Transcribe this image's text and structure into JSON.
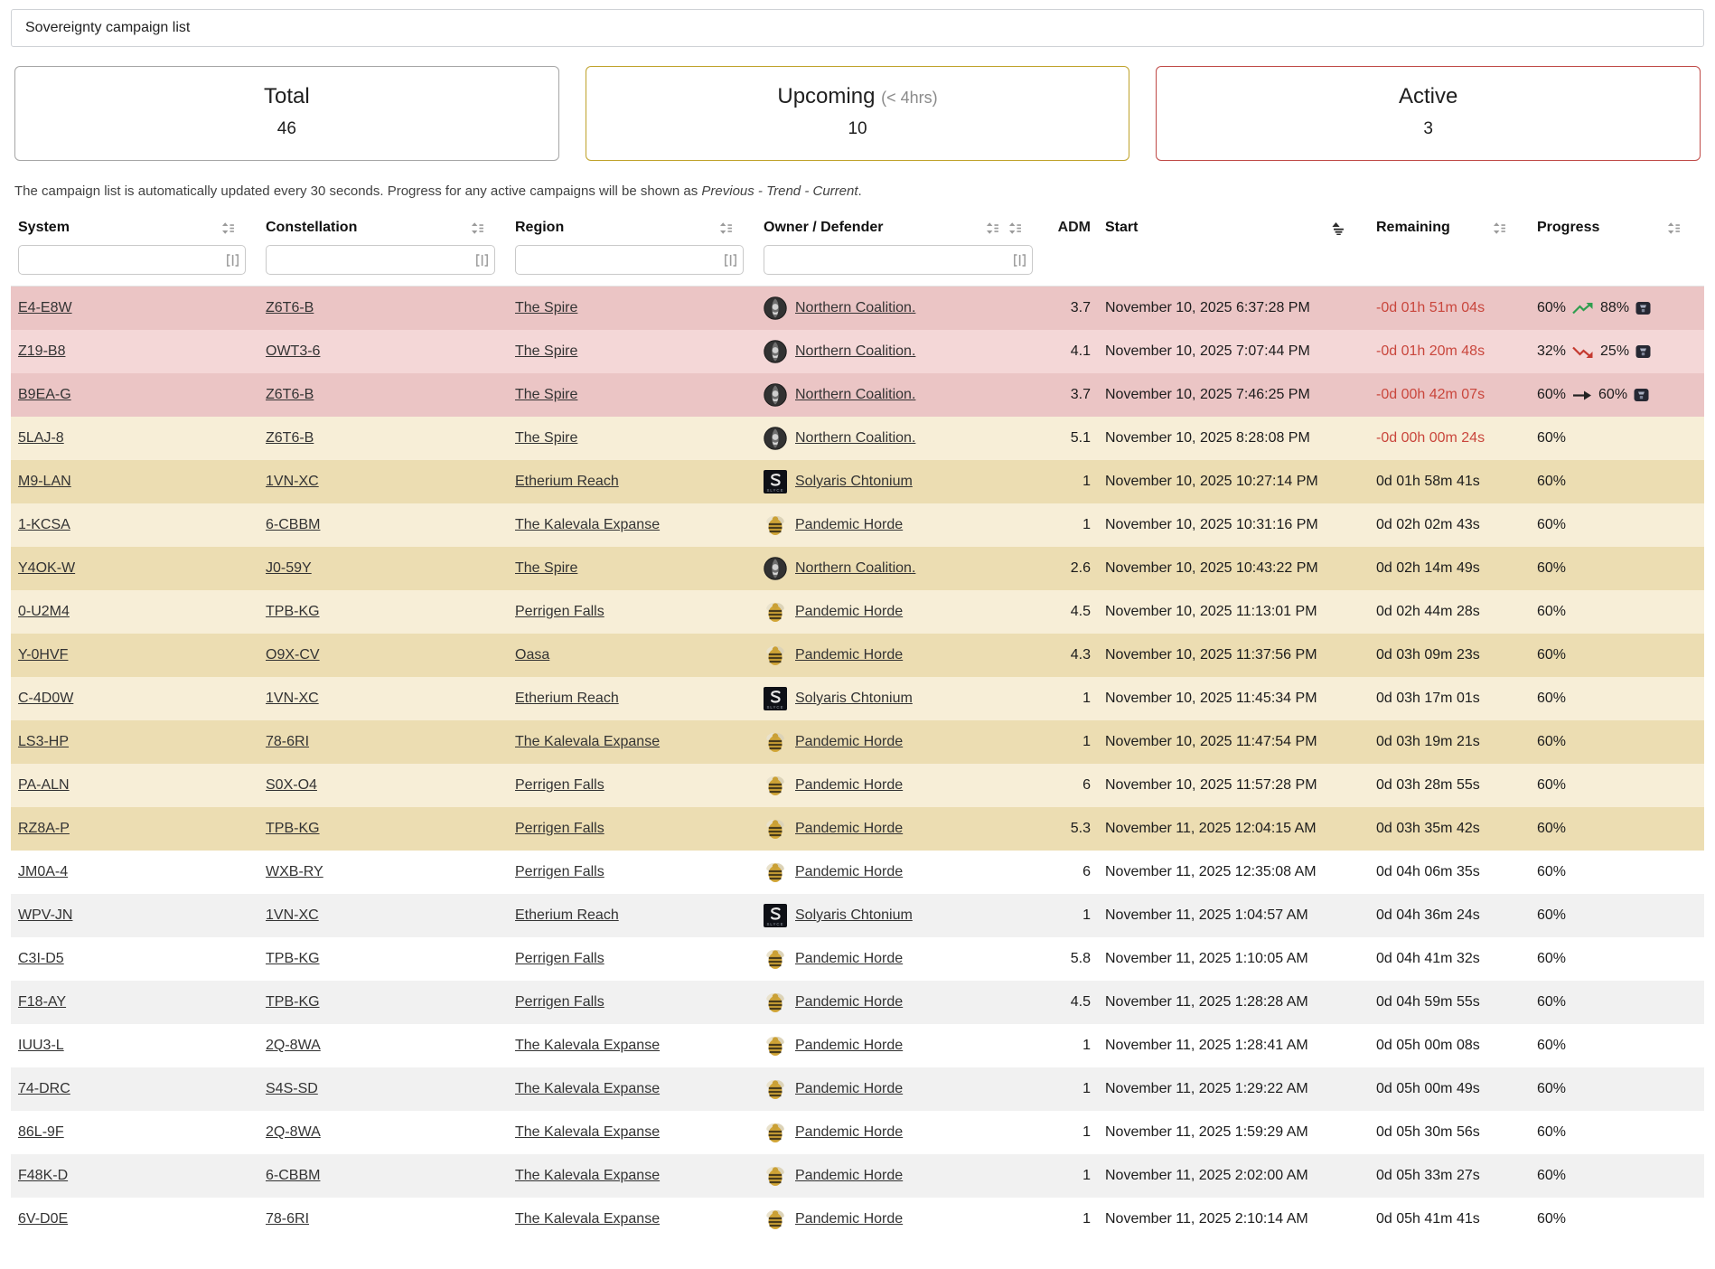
{
  "title": "Sovereignty campaign list",
  "cards": [
    {
      "label": "Total",
      "sub": "",
      "value": "46",
      "border_color": "#a6a6a6"
    },
    {
      "label": "Upcoming",
      "sub": "(< 4hrs)",
      "value": "10",
      "border_color": "#bfa22a"
    },
    {
      "label": "Active",
      "sub": "",
      "value": "3",
      "border_color": "#bf4a47"
    }
  ],
  "info": {
    "text_before": "The campaign list is automatically updated every 30 seconds. Progress for any active campaigns will be shown as ",
    "text_italic": "Previous - Trend - Current",
    "text_after": "."
  },
  "colors": {
    "active_row": "#ebc5c5",
    "upcoming_row": "#ecddb2",
    "overdue_text": "#c9463c",
    "trend_up": "#2f9e4f",
    "trend_down": "#c4392f"
  },
  "table": {
    "columns": [
      "System",
      "Constellation",
      "Region",
      "Owner / Defender",
      "ADM",
      "Start",
      "Remaining",
      "Progress"
    ],
    "sorted_by": {
      "column": "Start",
      "direction": "asc"
    },
    "filters": {
      "system": "",
      "constellation": "",
      "region": "",
      "owner": ""
    },
    "rows": [
      {
        "system": "E4-E8W",
        "constellation": "Z6T6-B",
        "region": "The Spire",
        "owner": "Northern Coalition.",
        "owner_logo": "northern-coalition",
        "adm": "3.7",
        "start": "November 10, 2025 6:37:28 PM",
        "remaining": "-0d 01h 51m 04s",
        "remaining_overdue": true,
        "state": "active",
        "progress": {
          "previous": "60%",
          "trend": "up",
          "current": "88%"
        }
      },
      {
        "system": "Z19-B8",
        "constellation": "OWT3-6",
        "region": "The Spire",
        "owner": "Northern Coalition.",
        "owner_logo": "northern-coalition",
        "adm": "4.1",
        "start": "November 10, 2025 7:07:44 PM",
        "remaining": "-0d 01h 20m 48s",
        "remaining_overdue": true,
        "state": "active",
        "progress": {
          "previous": "32%",
          "trend": "down",
          "current": "25%"
        }
      },
      {
        "system": "B9EA-G",
        "constellation": "Z6T6-B",
        "region": "The Spire",
        "owner": "Northern Coalition.",
        "owner_logo": "northern-coalition",
        "adm": "3.7",
        "start": "November 10, 2025 7:46:25 PM",
        "remaining": "-0d 00h 42m 07s",
        "remaining_overdue": true,
        "state": "active",
        "progress": {
          "previous": "60%",
          "trend": "flat",
          "current": "60%"
        }
      },
      {
        "system": "5LAJ-8",
        "constellation": "Z6T6-B",
        "region": "The Spire",
        "owner": "Northern Coalition.",
        "owner_logo": "northern-coalition",
        "adm": "5.1",
        "start": "November 10, 2025 8:28:08 PM",
        "remaining": "-0d 00h 00m 24s",
        "remaining_overdue": true,
        "state": "upcoming",
        "progress": {
          "current": "60%"
        }
      },
      {
        "system": "M9-LAN",
        "constellation": "1VN-XC",
        "region": "Etherium Reach",
        "owner": "Solyaris Chtonium",
        "owner_logo": "solyaris-chtonium",
        "adm": "1",
        "start": "November 10, 2025 10:27:14 PM",
        "remaining": "0d 01h 58m 41s",
        "remaining_overdue": false,
        "state": "upcoming",
        "progress": {
          "current": "60%"
        }
      },
      {
        "system": "1-KCSA",
        "constellation": "6-CBBM",
        "region": "The Kalevala Expanse",
        "owner": "Pandemic Horde",
        "owner_logo": "pandemic-horde",
        "adm": "1",
        "start": "November 10, 2025 10:31:16 PM",
        "remaining": "0d 02h 02m 43s",
        "remaining_overdue": false,
        "state": "upcoming",
        "progress": {
          "current": "60%"
        }
      },
      {
        "system": "Y4OK-W",
        "constellation": "J0-59Y",
        "region": "The Spire",
        "owner": "Northern Coalition.",
        "owner_logo": "northern-coalition",
        "adm": "2.6",
        "start": "November 10, 2025 10:43:22 PM",
        "remaining": "0d 02h 14m 49s",
        "remaining_overdue": false,
        "state": "upcoming",
        "progress": {
          "current": "60%"
        }
      },
      {
        "system": "0-U2M4",
        "constellation": "TPB-KG",
        "region": "Perrigen Falls",
        "owner": "Pandemic Horde",
        "owner_logo": "pandemic-horde",
        "adm": "4.5",
        "start": "November 10, 2025 11:13:01 PM",
        "remaining": "0d 02h 44m 28s",
        "remaining_overdue": false,
        "state": "upcoming",
        "progress": {
          "current": "60%"
        }
      },
      {
        "system": "Y-0HVF",
        "constellation": "O9X-CV",
        "region": "Oasa",
        "owner": "Pandemic Horde",
        "owner_logo": "pandemic-horde",
        "adm": "4.3",
        "start": "November 10, 2025 11:37:56 PM",
        "remaining": "0d 03h 09m 23s",
        "remaining_overdue": false,
        "state": "upcoming",
        "progress": {
          "current": "60%"
        }
      },
      {
        "system": "C-4D0W",
        "constellation": "1VN-XC",
        "region": "Etherium Reach",
        "owner": "Solyaris Chtonium",
        "owner_logo": "solyaris-chtonium",
        "adm": "1",
        "start": "November 10, 2025 11:45:34 PM",
        "remaining": "0d 03h 17m 01s",
        "remaining_overdue": false,
        "state": "upcoming",
        "progress": {
          "current": "60%"
        }
      },
      {
        "system": "LS3-HP",
        "constellation": "78-6RI",
        "region": "The Kalevala Expanse",
        "owner": "Pandemic Horde",
        "owner_logo": "pandemic-horde",
        "adm": "1",
        "start": "November 10, 2025 11:47:54 PM",
        "remaining": "0d 03h 19m 21s",
        "remaining_overdue": false,
        "state": "upcoming",
        "progress": {
          "current": "60%"
        }
      },
      {
        "system": "PA-ALN",
        "constellation": "S0X-O4",
        "region": "Perrigen Falls",
        "owner": "Pandemic Horde",
        "owner_logo": "pandemic-horde",
        "adm": "6",
        "start": "November 10, 2025 11:57:28 PM",
        "remaining": "0d 03h 28m 55s",
        "remaining_overdue": false,
        "state": "upcoming",
        "progress": {
          "current": "60%"
        }
      },
      {
        "system": "RZ8A-P",
        "constellation": "TPB-KG",
        "region": "Perrigen Falls",
        "owner": "Pandemic Horde",
        "owner_logo": "pandemic-horde",
        "adm": "5.3",
        "start": "November 11, 2025 12:04:15 AM",
        "remaining": "0d 03h 35m 42s",
        "remaining_overdue": false,
        "state": "upcoming",
        "progress": {
          "current": "60%"
        }
      },
      {
        "system": "JM0A-4",
        "constellation": "WXB-RY",
        "region": "Perrigen Falls",
        "owner": "Pandemic Horde",
        "owner_logo": "pandemic-horde",
        "adm": "6",
        "start": "November 11, 2025 12:35:08 AM",
        "remaining": "0d 04h 06m 35s",
        "remaining_overdue": false,
        "state": "normal",
        "progress": {
          "current": "60%"
        }
      },
      {
        "system": "WPV-JN",
        "constellation": "1VN-XC",
        "region": "Etherium Reach",
        "owner": "Solyaris Chtonium",
        "owner_logo": "solyaris-chtonium",
        "adm": "1",
        "start": "November 11, 2025 1:04:57 AM",
        "remaining": "0d 04h 36m 24s",
        "remaining_overdue": false,
        "state": "normal",
        "progress": {
          "current": "60%"
        }
      },
      {
        "system": "C3I-D5",
        "constellation": "TPB-KG",
        "region": "Perrigen Falls",
        "owner": "Pandemic Horde",
        "owner_logo": "pandemic-horde",
        "adm": "5.8",
        "start": "November 11, 2025 1:10:05 AM",
        "remaining": "0d 04h 41m 32s",
        "remaining_overdue": false,
        "state": "normal",
        "progress": {
          "current": "60%"
        }
      },
      {
        "system": "F18-AY",
        "constellation": "TPB-KG",
        "region": "Perrigen Falls",
        "owner": "Pandemic Horde",
        "owner_logo": "pandemic-horde",
        "adm": "4.5",
        "start": "November 11, 2025 1:28:28 AM",
        "remaining": "0d 04h 59m 55s",
        "remaining_overdue": false,
        "state": "normal",
        "progress": {
          "current": "60%"
        }
      },
      {
        "system": "IUU3-L",
        "constellation": "2Q-8WA",
        "region": "The Kalevala Expanse",
        "owner": "Pandemic Horde",
        "owner_logo": "pandemic-horde",
        "adm": "1",
        "start": "November 11, 2025 1:28:41 AM",
        "remaining": "0d 05h 00m 08s",
        "remaining_overdue": false,
        "state": "normal",
        "progress": {
          "current": "60%"
        }
      },
      {
        "system": "74-DRC",
        "constellation": "S4S-SD",
        "region": "The Kalevala Expanse",
        "owner": "Pandemic Horde",
        "owner_logo": "pandemic-horde",
        "adm": "1",
        "start": "November 11, 2025 1:29:22 AM",
        "remaining": "0d 05h 00m 49s",
        "remaining_overdue": false,
        "state": "normal",
        "progress": {
          "current": "60%"
        }
      },
      {
        "system": "86L-9F",
        "constellation": "2Q-8WA",
        "region": "The Kalevala Expanse",
        "owner": "Pandemic Horde",
        "owner_logo": "pandemic-horde",
        "adm": "1",
        "start": "November 11, 2025 1:59:29 AM",
        "remaining": "0d 05h 30m 56s",
        "remaining_overdue": false,
        "state": "normal",
        "progress": {
          "current": "60%"
        }
      },
      {
        "system": "F48K-D",
        "constellation": "6-CBBM",
        "region": "The Kalevala Expanse",
        "owner": "Pandemic Horde",
        "owner_logo": "pandemic-horde",
        "adm": "1",
        "start": "November 11, 2025 2:02:00 AM",
        "remaining": "0d 05h 33m 27s",
        "remaining_overdue": false,
        "state": "normal",
        "progress": {
          "current": "60%"
        }
      },
      {
        "system": "6V-D0E",
        "constellation": "78-6RI",
        "region": "The Kalevala Expanse",
        "owner": "Pandemic Horde",
        "owner_logo": "pandemic-horde",
        "adm": "1",
        "start": "November 11, 2025 2:10:14 AM",
        "remaining": "0d 05h 41m 41s",
        "remaining_overdue": false,
        "state": "normal",
        "progress": {
          "current": "60%"
        }
      }
    ]
  }
}
